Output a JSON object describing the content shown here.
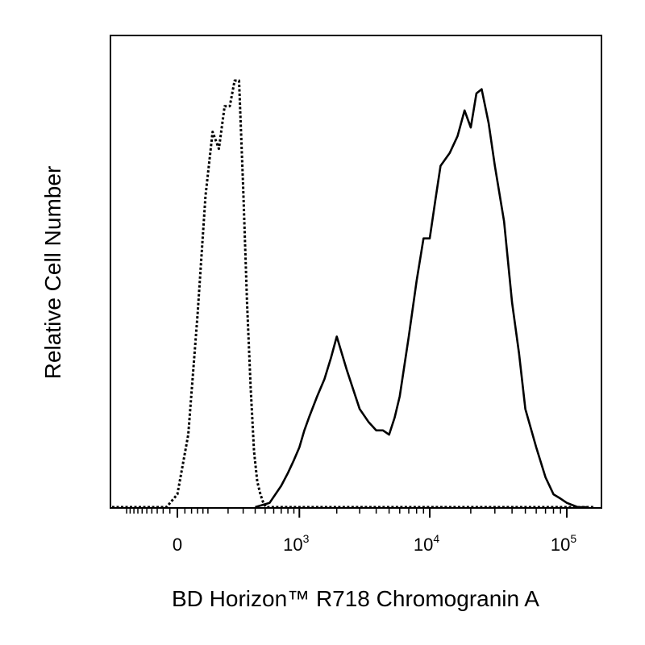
{
  "chart_data": {
    "type": "area",
    "xlabel": "BD Horizon™ R718 Chromogranin A",
    "ylabel": "Relative Cell Number",
    "x_scale": "biexponential",
    "xlim": [
      -300,
      150000
    ],
    "ylim": [
      0,
      1
    ],
    "grid": false,
    "x_ticks": [
      {
        "value": 0,
        "base": "0",
        "exp": ""
      },
      {
        "value": 1000,
        "base": "10",
        "exp": "3"
      },
      {
        "value": 10000,
        "base": "10",
        "exp": "4"
      },
      {
        "value": 100000,
        "base": "10",
        "exp": "5"
      }
    ],
    "series": [
      {
        "style": "dotted",
        "color": "#000000",
        "x": [
          -30,
          0,
          30,
          60,
          90,
          120,
          150,
          180,
          210,
          240,
          270,
          300,
          330,
          360,
          390,
          420,
          450,
          480,
          510,
          540,
          560
        ],
        "y": [
          0.0,
          0.03,
          0.17,
          0.45,
          0.73,
          0.88,
          0.84,
          0.94,
          0.94,
          1.0,
          1.0,
          0.75,
          0.48,
          0.28,
          0.13,
          0.06,
          0.03,
          0.01,
          0.0,
          0.0,
          0.0
        ]
      },
      {
        "style": "solid",
        "color": "#000000",
        "x": [
          400,
          550,
          700,
          800,
          900,
          1000,
          1100,
          1200,
          1400,
          1600,
          1800,
          2000,
          2400,
          3000,
          3500,
          4000,
          4500,
          5000,
          5500,
          6000,
          7000,
          8000,
          9000,
          10000,
          11000,
          12000,
          14000,
          16000,
          18000,
          20000,
          22000,
          24000,
          27000,
          30000,
          35000,
          40000,
          45000,
          50000,
          60000,
          70000,
          80000,
          90000,
          100000,
          120000,
          140000
        ],
        "y": [
          0.0,
          0.01,
          0.05,
          0.08,
          0.11,
          0.14,
          0.18,
          0.21,
          0.26,
          0.3,
          0.35,
          0.4,
          0.32,
          0.23,
          0.2,
          0.18,
          0.18,
          0.17,
          0.21,
          0.26,
          0.4,
          0.53,
          0.63,
          0.63,
          0.72,
          0.8,
          0.83,
          0.87,
          0.93,
          0.89,
          0.97,
          0.98,
          0.9,
          0.8,
          0.67,
          0.48,
          0.36,
          0.23,
          0.14,
          0.07,
          0.03,
          0.02,
          0.01,
          0.0,
          0.0
        ]
      }
    ]
  }
}
